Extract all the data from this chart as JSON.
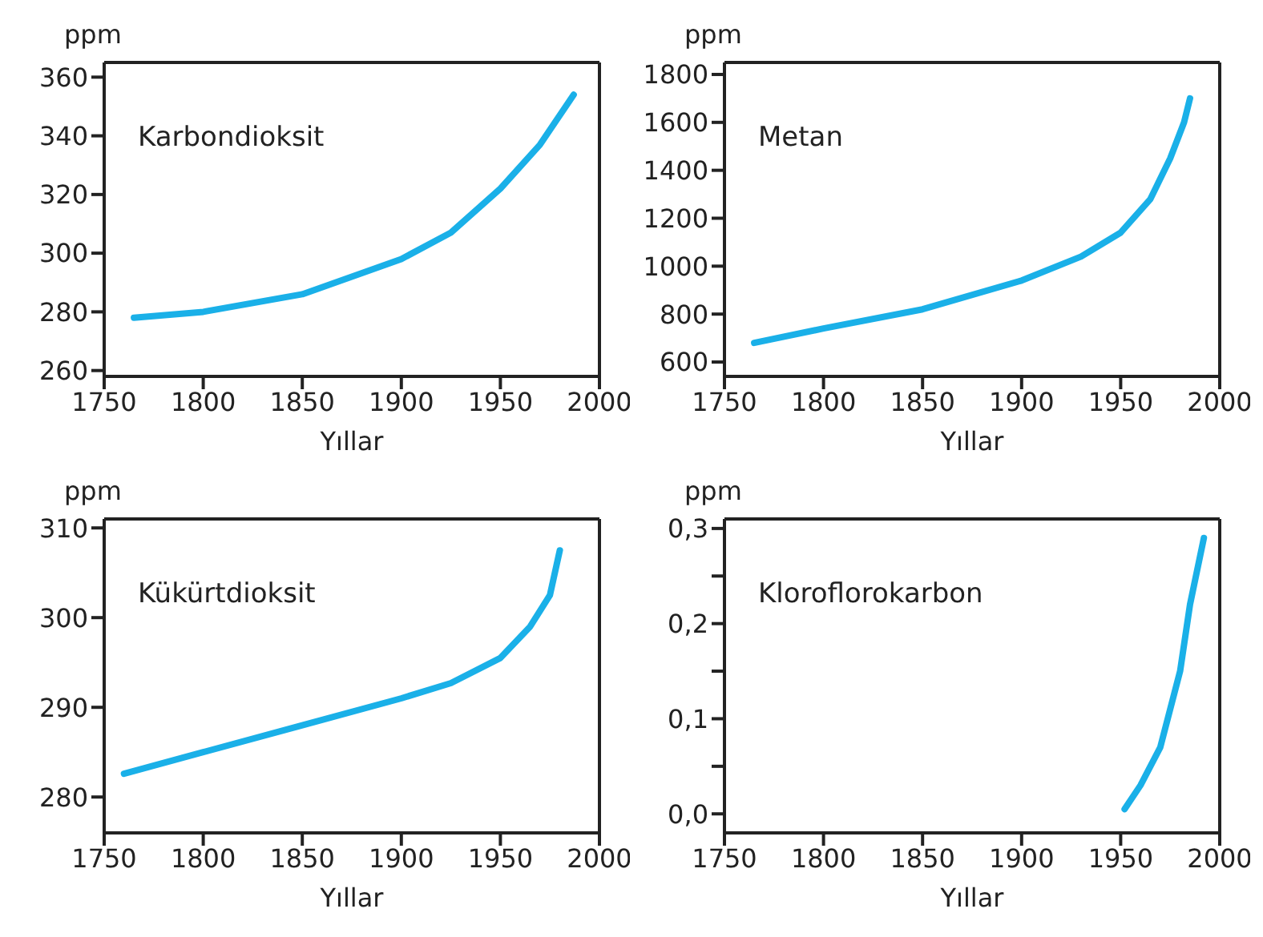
{
  "chart_data": [
    {
      "type": "line",
      "title": "Karbondioksit",
      "ylabel": "ppm",
      "xlabel": "Yıllar",
      "marker": "none",
      "line_style": "solid",
      "xlim": [
        1750,
        2000
      ],
      "xticks": [
        1750,
        1800,
        1850,
        1900,
        1950,
        2000
      ],
      "ylim": [
        258,
        365
      ],
      "yticks": [
        260,
        280,
        300,
        320,
        340,
        360
      ],
      "series": [
        {
          "color": "#1ab0e8",
          "x": [
            1765,
            1800,
            1850,
            1900,
            1925,
            1950,
            1970,
            1987
          ],
          "values": [
            278,
            280,
            286,
            298,
            307,
            322,
            337,
            354
          ]
        }
      ]
    },
    {
      "type": "line",
      "title": "Metan",
      "ylabel": "ppm",
      "xlabel": "Yıllar",
      "marker": "none",
      "line_style": "solid",
      "xlim": [
        1750,
        2000
      ],
      "xticks": [
        1750,
        1800,
        1850,
        1900,
        1950,
        2000
      ],
      "ylim": [
        540,
        1850
      ],
      "yticks": [
        600,
        800,
        1000,
        1200,
        1400,
        1600,
        1800
      ],
      "series": [
        {
          "color": "#1ab0e8",
          "x": [
            1765,
            1800,
            1850,
            1900,
            1930,
            1950,
            1965,
            1975,
            1982,
            1985
          ],
          "values": [
            680,
            740,
            820,
            940,
            1040,
            1140,
            1280,
            1450,
            1600,
            1700
          ]
        }
      ]
    },
    {
      "type": "line",
      "title": "Kükürtdioksit",
      "ylabel": "ppm",
      "xlabel": "Yıllar",
      "marker": "none",
      "line_style": "solid",
      "xlim": [
        1750,
        2000
      ],
      "xticks": [
        1750,
        1800,
        1850,
        1900,
        1950,
        2000
      ],
      "ylim": [
        276,
        311
      ],
      "yticks": [
        280,
        290,
        300,
        310
      ],
      "series": [
        {
          "color": "#1ab0e8",
          "x": [
            1760,
            1800,
            1850,
            1900,
            1925,
            1950,
            1965,
            1975,
            1980
          ],
          "values": [
            282.6,
            285,
            288,
            291,
            292.7,
            295.5,
            299,
            302.5,
            307.5
          ]
        }
      ]
    },
    {
      "type": "line",
      "title": "Kloroflorokarbon",
      "ylabel": "ppm",
      "xlabel": "Yıllar",
      "marker": "none",
      "line_style": "solid",
      "xlim": [
        1750,
        2000
      ],
      "xticks": [
        1750,
        1800,
        1850,
        1900,
        1950,
        2000
      ],
      "ylim": [
        -0.02,
        0.31
      ],
      "yticks": [
        {
          "value": 0,
          "label": "0,0"
        },
        {
          "value": 0.05,
          "label": null
        },
        {
          "value": 0.1,
          "label": "0,1"
        },
        {
          "value": 0.15,
          "label": null
        },
        {
          "value": 0.2,
          "label": "0,2"
        },
        {
          "value": 0.25,
          "label": null
        },
        {
          "value": 0.3,
          "label": "0,3"
        }
      ],
      "series": [
        {
          "color": "#1ab0e8",
          "x": [
            1952,
            1960,
            1970,
            1980,
            1985,
            1992
          ],
          "values": [
            0.005,
            0.03,
            0.07,
            0.15,
            0.22,
            0.29
          ]
        }
      ]
    }
  ]
}
